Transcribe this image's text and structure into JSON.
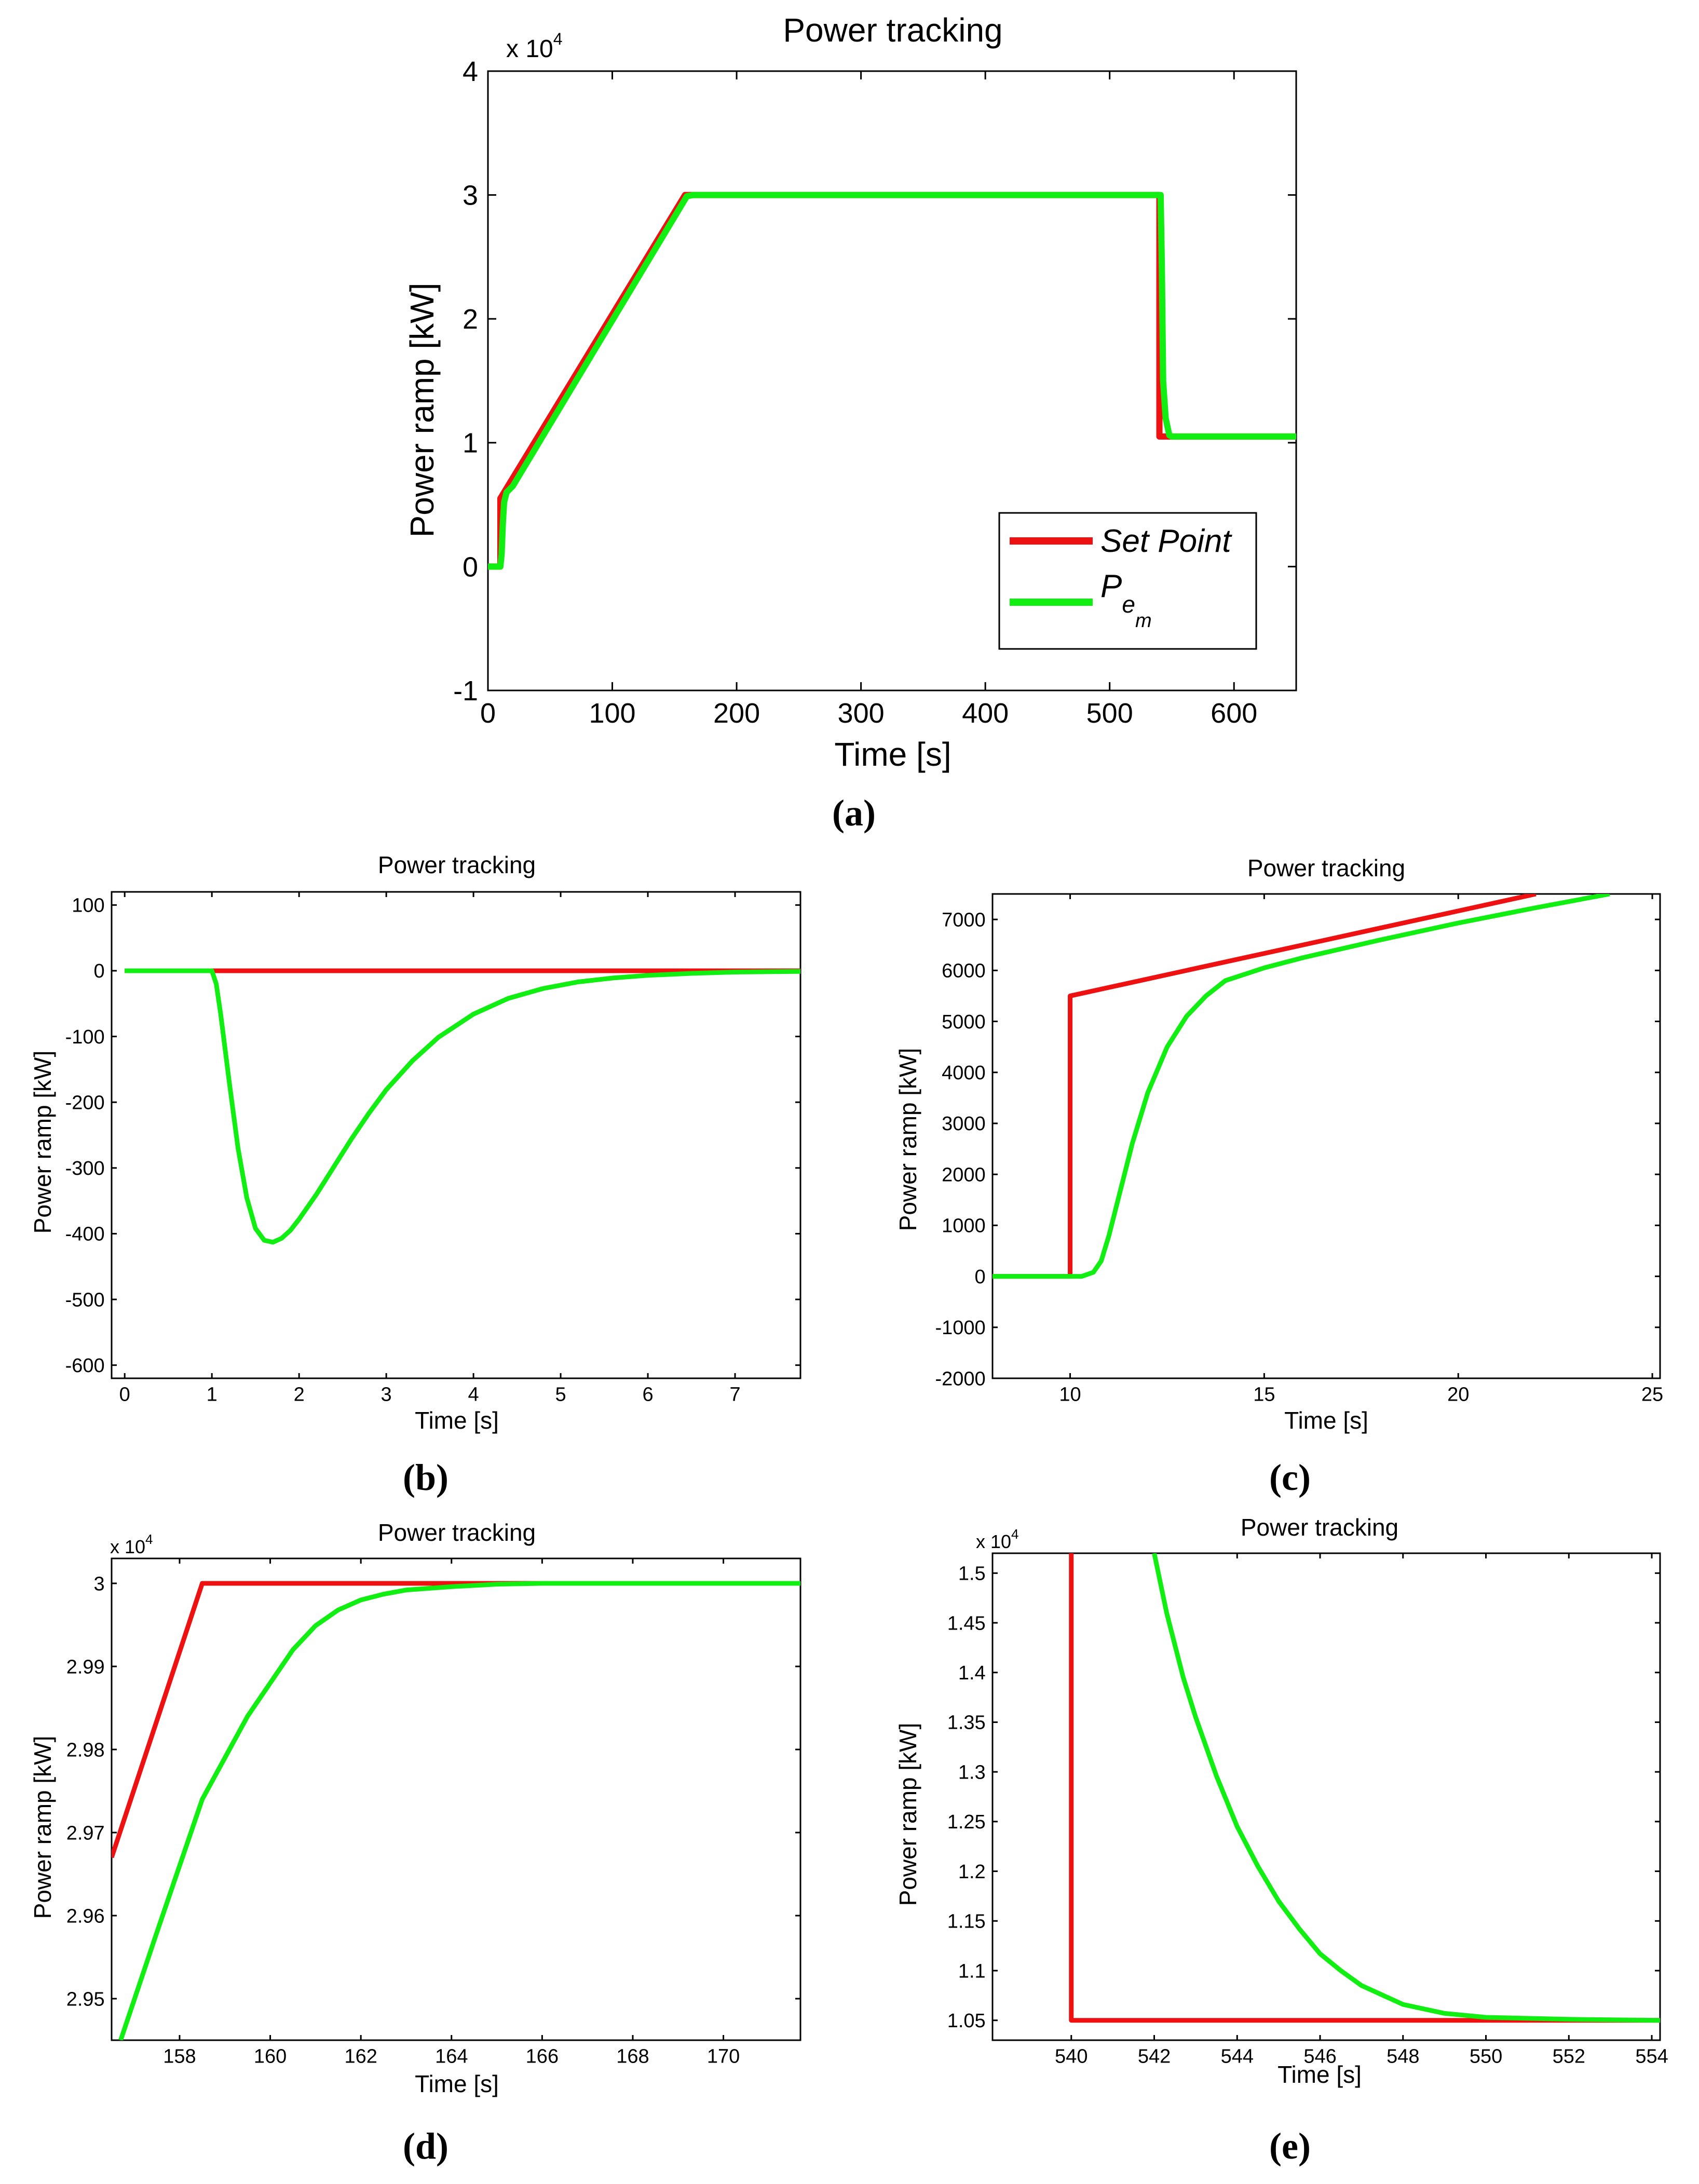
{
  "colors": {
    "setpoint": "#ee1111",
    "pem": "#11ee11",
    "axis": "#000000",
    "grid": "#000000",
    "background": "#ffffff"
  },
  "chart_data": [
    {
      "id": "a",
      "type": "line",
      "caption": "(a)",
      "title": "Power tracking",
      "xlabel": "Time [s]",
      "ylabel": "Power ramp [kW]",
      "multiplier": "x 10",
      "multiplier_exp": "4",
      "xlim": [
        0,
        650
      ],
      "ylim": [
        -1,
        4
      ],
      "xticks": [
        0,
        100,
        200,
        300,
        400,
        500,
        600
      ],
      "yticks": [
        -1,
        0,
        1,
        2,
        3,
        4
      ],
      "xtick_labels": [
        "0",
        "100",
        "200",
        "300",
        "400",
        "500",
        "600"
      ],
      "ytick_labels": [
        "-1",
        "0",
        "1",
        "2",
        "3",
        "4"
      ],
      "legend": {
        "position": "bottom-right",
        "entries": [
          {
            "label": "Set Point",
            "series": 0
          },
          {
            "label": "P",
            "sub": "e",
            "subsub": "m",
            "series": 1
          }
        ]
      },
      "series": [
        {
          "name": "Set Point",
          "x": [
            0,
            10,
            10,
            158.5,
            540,
            540,
            650
          ],
          "y": [
            0,
            0,
            0.55,
            3.0,
            3.0,
            1.05,
            1.05
          ]
        },
        {
          "name": "P_em",
          "x": [
            0,
            10,
            11,
            12,
            13,
            15,
            20,
            160,
            165,
            541,
            542,
            543,
            545,
            548,
            550,
            650
          ],
          "y": [
            0,
            0,
            0.1,
            0.35,
            0.52,
            0.6,
            0.65,
            2.99,
            3.0,
            3.0,
            2.4,
            1.5,
            1.2,
            1.06,
            1.05,
            1.05
          ]
        }
      ]
    },
    {
      "id": "b",
      "type": "line",
      "caption": "(b)",
      "title": "Power tracking",
      "xlabel": "Time [s]",
      "ylabel": "Power ramp [kW]",
      "xlim": [
        -0.15,
        7.75
      ],
      "ylim": [
        -620,
        120
      ],
      "xticks": [
        0,
        1,
        2,
        3,
        4,
        5,
        6,
        7
      ],
      "yticks": [
        -600,
        -500,
        -400,
        -300,
        -200,
        -100,
        0,
        100
      ],
      "xtick_labels": [
        "0",
        "1",
        "2",
        "3",
        "4",
        "5",
        "6",
        "7"
      ],
      "ytick_labels": [
        "-600",
        "-500",
        "-400",
        "-300",
        "-200",
        "-100",
        "0",
        "100"
      ],
      "series": [
        {
          "name": "Set Point",
          "x": [
            0,
            7.75
          ],
          "y": [
            0,
            0
          ]
        },
        {
          "name": "P_em",
          "x": [
            0,
            1.0,
            1.05,
            1.1,
            1.2,
            1.3,
            1.4,
            1.5,
            1.6,
            1.7,
            1.8,
            1.9,
            2.0,
            2.2,
            2.4,
            2.6,
            2.8,
            3.0,
            3.3,
            3.6,
            4.0,
            4.4,
            4.8,
            5.2,
            5.6,
            6.0,
            6.5,
            7.0,
            7.75
          ],
          "y": [
            0,
            0,
            -20,
            -65,
            -170,
            -270,
            -345,
            -392,
            -410,
            -413,
            -407,
            -395,
            -378,
            -340,
            -298,
            -256,
            -217,
            -181,
            -137,
            -101,
            -66,
            -42,
            -27,
            -17,
            -11,
            -7,
            -4,
            -2,
            -1
          ]
        }
      ]
    },
    {
      "id": "c",
      "type": "line",
      "caption": "(c)",
      "title": "Power tracking",
      "xlabel": "Time [s]",
      "ylabel": "Power ramp [kW]",
      "xlim": [
        8,
        25.2
      ],
      "ylim": [
        -2000,
        7500
      ],
      "xticks": [
        10,
        15,
        20,
        25
      ],
      "yticks": [
        -2000,
        -1000,
        0,
        1000,
        2000,
        3000,
        4000,
        5000,
        6000,
        7000
      ],
      "xtick_labels": [
        "10",
        "15",
        "20",
        "25"
      ],
      "ytick_labels": [
        "-2000",
        "-1000",
        "0",
        "1000",
        "2000",
        "3000",
        "4000",
        "5000",
        "6000",
        "7000"
      ],
      "series": [
        {
          "name": "Set Point",
          "x": [
            8,
            10,
            10,
            22
          ],
          "y": [
            0,
            0,
            5500,
            7500
          ]
        },
        {
          "name": "P_em",
          "x": [
            8,
            10.3,
            10.6,
            10.8,
            11.0,
            11.3,
            11.6,
            12.0,
            12.5,
            13.0,
            13.5,
            14.0,
            15.0,
            16.0,
            18.0,
            20.0,
            22.0,
            23.9
          ],
          "y": [
            0,
            0,
            80,
            300,
            800,
            1700,
            2600,
            3600,
            4500,
            5100,
            5500,
            5800,
            6050,
            6250,
            6600,
            6930,
            7230,
            7500
          ]
        }
      ]
    },
    {
      "id": "d",
      "type": "line",
      "caption": "(d)",
      "title": "Power tracking",
      "xlabel": "Time [s]",
      "ylabel": "Power ramp [kW]",
      "multiplier": "x 10",
      "multiplier_exp": "4",
      "xlim": [
        156.5,
        171.7
      ],
      "ylim": [
        2.945,
        3.003
      ],
      "xticks": [
        158,
        160,
        162,
        164,
        166,
        168,
        170
      ],
      "yticks": [
        2.95,
        2.96,
        2.97,
        2.98,
        2.99,
        3.0
      ],
      "xtick_labels": [
        "158",
        "160",
        "162",
        "164",
        "166",
        "168",
        "170"
      ],
      "ytick_labels": [
        "2.95",
        "2.96",
        "2.97",
        "2.98",
        "2.99",
        "3"
      ],
      "series": [
        {
          "name": "Set Point",
          "x": [
            156.5,
            158.5,
            171.7
          ],
          "y": [
            2.967,
            3.0,
            3.0
          ]
        },
        {
          "name": "P_em",
          "x": [
            156.7,
            157.5,
            158.5,
            159.5,
            160.0,
            160.5,
            161.0,
            161.5,
            162.0,
            162.5,
            163.0,
            164.0,
            165.0,
            166.0,
            168.0,
            171.7
          ],
          "y": [
            2.945,
            2.958,
            2.974,
            2.984,
            2.988,
            2.992,
            2.9949,
            2.9968,
            2.998,
            2.9987,
            2.9992,
            2.9996,
            2.9999,
            3.0,
            3.0,
            3.0
          ]
        }
      ]
    },
    {
      "id": "e",
      "type": "line",
      "caption": "(e)",
      "title": "Power tracking",
      "xlabel": "Time [s]",
      "ylabel": "Power ramp [kW]",
      "multiplier": "x 10",
      "multiplier_exp": "4",
      "xlim": [
        538.1,
        554.2
      ],
      "ylim": [
        1.03,
        1.52
      ],
      "xticks": [
        540,
        542,
        544,
        546,
        548,
        550,
        552,
        554
      ],
      "yticks": [
        1.05,
        1.1,
        1.15,
        1.2,
        1.25,
        1.3,
        1.35,
        1.4,
        1.45,
        1.5
      ],
      "xtick_labels": [
        "540",
        "542",
        "544",
        "546",
        "548",
        "550",
        "552",
        "554"
      ],
      "ytick_labels": [
        "1.05",
        "1.1",
        "1.15",
        "1.2",
        "1.25",
        "1.3",
        "1.35",
        "1.4",
        "1.45",
        "1.5"
      ],
      "series": [
        {
          "name": "Set Point",
          "x": [
            540,
            540,
            554.2
          ],
          "y": [
            1.52,
            1.05,
            1.05
          ]
        },
        {
          "name": "P_em",
          "x": [
            542.0,
            542.3,
            542.7,
            543.0,
            543.5,
            544.0,
            544.5,
            545.0,
            545.5,
            546.0,
            546.5,
            547.0,
            548.0,
            549.0,
            550.0,
            552.0,
            554.2
          ],
          "y": [
            1.52,
            1.46,
            1.395,
            1.355,
            1.296,
            1.245,
            1.205,
            1.17,
            1.142,
            1.117,
            1.1,
            1.085,
            1.066,
            1.057,
            1.053,
            1.051,
            1.05
          ]
        }
      ]
    }
  ]
}
